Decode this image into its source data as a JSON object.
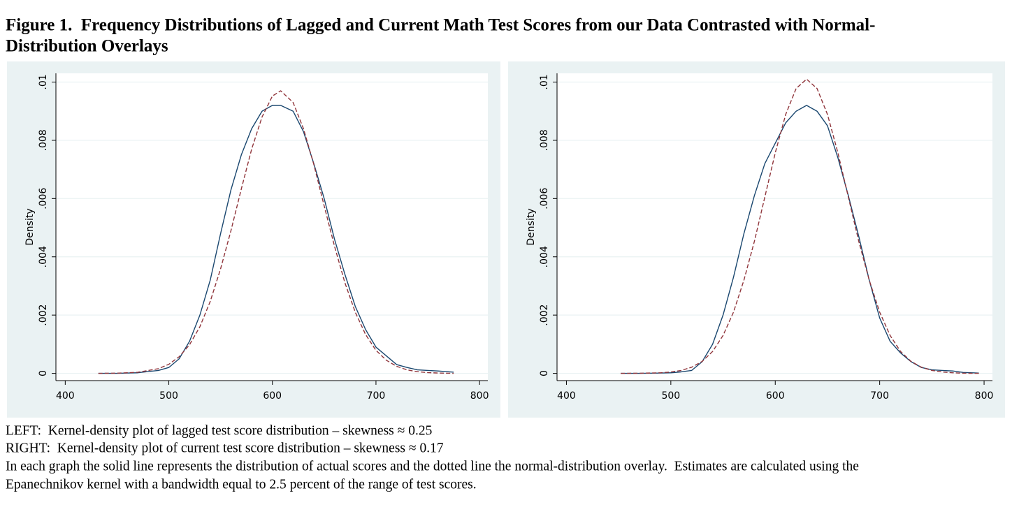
{
  "figure": {
    "title": [
      "Figure 1.  Frequency Distributions of Lagged and Current Math Test Scores from our Data Contrasted with Normal-",
      "Distribution Overlays"
    ],
    "notes": [
      "LEFT:  Kernel-density plot of lagged test score distribution – skewness ≈ 0.25",
      "RIGHT:  Kernel-density plot of current test score distribution – skewness ≈ 0.17",
      "In each graph the solid line represents the distribution of actual scores and the dotted line the normal-distribution overlay.  Estimates are calculated using the",
      "Epanechnikov kernel with a bandwidth equal to 2.5 percent of the range of test scores."
    ]
  },
  "chart_data": [
    {
      "type": "line",
      "y_label": "Density",
      "grid": true,
      "xlim": [
        391,
        808
      ],
      "xticks": [
        400,
        500,
        600,
        700,
        800
      ],
      "ylim": [
        -0.00025,
        0.0103
      ],
      "yticks": [
        0,
        {
          "value": 0.002,
          "label": ".002"
        },
        {
          "value": 0.004,
          "label": ".004"
        },
        {
          "value": 0.006,
          "label": ".006"
        },
        {
          "value": 0.008,
          "label": ".008"
        },
        {
          "value": 0.01,
          "label": ".01"
        }
      ],
      "x": [
        432,
        450,
        470,
        490,
        500,
        510,
        520,
        530,
        540,
        550,
        560,
        570,
        580,
        590,
        600,
        608,
        620,
        630,
        640,
        650,
        660,
        670,
        680,
        690,
        700,
        710,
        720,
        730,
        740,
        750,
        760,
        775
      ],
      "series": [
        {
          "color": "#1a476f",
          "dashed": false,
          "values": [
            0,
            0,
            2e-05,
            0.0001,
            0.0002,
            0.0005,
            0.0011,
            0.002,
            0.0032,
            0.0048,
            0.0063,
            0.0075,
            0.0084,
            0.009,
            0.0092,
            0.0092,
            0.009,
            0.0083,
            0.0072,
            0.006,
            0.0046,
            0.0034,
            0.0023,
            0.0015,
            0.0009,
            0.0006,
            0.0003,
            0.0002,
            0.00012,
            0.0001,
            8e-05,
            4e-05
          ]
        },
        {
          "color": "#90353b",
          "dashed": true,
          "values": [
            0,
            6e-06,
            3.5e-05,
            0.00016,
            0.00031,
            0.00057,
            0.00098,
            0.0016,
            0.00247,
            0.00359,
            0.0049,
            0.00633,
            0.0077,
            0.0088,
            0.00952,
            0.0097,
            0.0093,
            0.0084,
            0.00717,
            0.00575,
            0.00436,
            0.00311,
            0.0021,
            0.00133,
            0.00079,
            0.00045,
            0.00024,
            0.00012,
            5.6e-05,
            2.5e-05,
            1e-05,
            0
          ]
        }
      ]
    },
    {
      "type": "line",
      "y_label": "Density",
      "grid": true,
      "xlim": [
        391,
        808
      ],
      "xticks": [
        400,
        500,
        600,
        700,
        800
      ],
      "ylim": [
        -0.00025,
        0.0103
      ],
      "yticks": [
        0,
        {
          "value": 0.002,
          "label": ".002"
        },
        {
          "value": 0.004,
          "label": ".004"
        },
        {
          "value": 0.006,
          "label": ".006"
        },
        {
          "value": 0.008,
          "label": ".008"
        },
        {
          "value": 0.01,
          "label": ".01"
        }
      ],
      "x": [
        452,
        470,
        490,
        500,
        510,
        520,
        530,
        540,
        550,
        560,
        570,
        580,
        590,
        600,
        610,
        620,
        630,
        640,
        650,
        660,
        670,
        680,
        690,
        700,
        710,
        720,
        730,
        740,
        750,
        760,
        770,
        780,
        795
      ],
      "series": [
        {
          "color": "#1a476f",
          "dashed": false,
          "values": [
            0,
            0,
            1e-05,
            2e-05,
            5e-05,
            0.0001,
            0.0004,
            0.001,
            0.002,
            0.0033,
            0.0048,
            0.0061,
            0.0072,
            0.0079,
            0.0086,
            0.009,
            0.0092,
            0.009,
            0.0085,
            0.0074,
            0.0061,
            0.0047,
            0.0032,
            0.0019,
            0.0011,
            0.0007,
            0.0004,
            0.0002,
            0.00012,
            0.0001,
            8e-05,
            3e-05,
            1e-05
          ]
        },
        {
          "color": "#90353b",
          "dashed": true,
          "values": [
            0,
            2.8e-06,
            1.9e-05,
            4.5e-05,
            0.0001,
            0.00021,
            0.00041,
            0.00075,
            0.0013,
            0.0021,
            0.0032,
            0.00453,
            0.00605,
            0.00757,
            0.00889,
            0.00978,
            0.0101,
            0.00978,
            0.00889,
            0.00757,
            0.00605,
            0.00453,
            0.0032,
            0.0021,
            0.0013,
            0.00075,
            0.00041,
            0.00021,
            0.0001,
            4.5e-05,
            1.9e-05,
            2.8e-06,
            0
          ]
        }
      ]
    }
  ]
}
